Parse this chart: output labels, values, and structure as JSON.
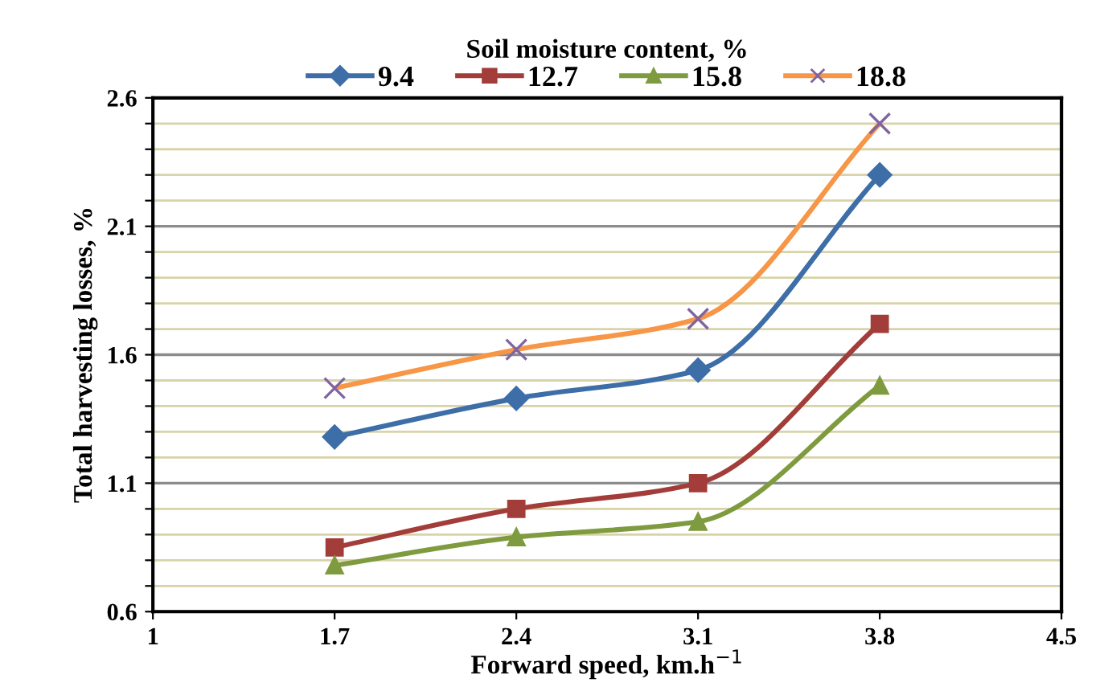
{
  "chart_data": {
    "type": "line",
    "xlabel": "Forward speed, km.h$^{−1}$",
    "ylabel": "Total harvesting losses, %",
    "legend_title": "Soil moisture content, %",
    "legend": "top",
    "grid": "y",
    "line_style": "solid",
    "x": [
      1.7,
      2.4,
      3.1,
      3.8
    ],
    "xlim": [
      1,
      4.5
    ],
    "xticks": [
      1,
      1.7,
      2.4,
      3.1,
      3.8,
      4.5
    ],
    "ylim": [
      0.6,
      2.6
    ],
    "yticks": [
      0.6,
      {
        "value": 0.7,
        "label": null
      },
      {
        "value": 0.8,
        "label": null
      },
      {
        "value": 0.9,
        "label": null
      },
      {
        "value": 1.0,
        "label": null
      },
      1.1,
      {
        "value": 1.2,
        "label": null
      },
      {
        "value": 1.3,
        "label": null
      },
      {
        "value": 1.4,
        "label": null
      },
      {
        "value": 1.5,
        "label": null
      },
      1.6,
      {
        "value": 1.7,
        "label": null
      },
      {
        "value": 1.8,
        "label": null
      },
      {
        "value": 1.9,
        "label": null
      },
      {
        "value": 2.0,
        "label": null
      },
      2.1,
      {
        "value": 2.2,
        "label": null
      },
      {
        "value": 2.3,
        "label": null
      },
      {
        "value": 2.4,
        "label": null
      },
      {
        "value": 2.5,
        "label": null
      },
      2.6
    ],
    "series": [
      {
        "name": "9.4",
        "color": "#3d6ea8",
        "marker": "diamond",
        "values": [
          1.28,
          1.43,
          1.54,
          2.3
        ]
      },
      {
        "name": "12.7",
        "color": "#a33d3a",
        "marker": "square",
        "values": [
          0.85,
          1.0,
          1.1,
          1.72
        ]
      },
      {
        "name": "15.8",
        "color": "#7f9b3f",
        "marker": "triangle",
        "values": [
          0.78,
          0.89,
          0.95,
          1.48
        ]
      },
      {
        "name": "18.8",
        "color": "#f79646",
        "marker": "cross",
        "values": [
          1.47,
          1.62,
          1.74,
          2.5
        ]
      }
    ]
  }
}
